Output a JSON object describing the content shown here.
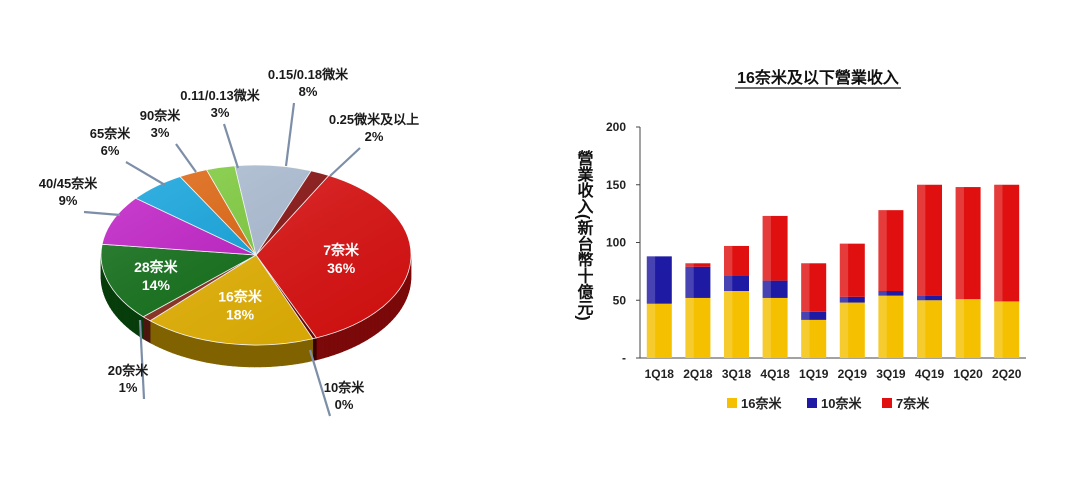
{
  "colors": {
    "n16": "#f5c000",
    "n10": "#1f1aa3",
    "n7": "#e01010"
  },
  "chart_data": [
    {
      "type": "pie",
      "title": "",
      "slices": [
        {
          "name": "7奈米",
          "value": 36,
          "label_pct": "36%",
          "color": "#e01010"
        },
        {
          "name": "10奈米",
          "value": 0,
          "label_pct": "0%",
          "color": "#6a0000"
        },
        {
          "name": "16奈米",
          "value": 18,
          "label_pct": "18%",
          "color": "#e8b400"
        },
        {
          "name": "20奈米",
          "value": 1,
          "label_pct": "1%",
          "color": "#8a2a1a"
        },
        {
          "name": "28奈米",
          "value": 14,
          "label_pct": "14%",
          "color": "#0d6e14"
        },
        {
          "name": "40/45奈米",
          "value": 9,
          "label_pct": "9%",
          "color": "#c21cc8"
        },
        {
          "name": "65奈米",
          "value": 6,
          "label_pct": "6%",
          "color": "#0fa5e0"
        },
        {
          "name": "90奈米",
          "value": 3,
          "label_pct": "3%",
          "color": "#e2650c"
        },
        {
          "name": "0.11/0.13微米",
          "value": 3,
          "label_pct": "3%",
          "color": "#7fcf3c"
        },
        {
          "name": "0.15/0.18微米",
          "value": 8,
          "label_pct": "8%",
          "color": "#aebfd6"
        },
        {
          "name": "0.25微米及以上",
          "value": 2,
          "label_pct": "2%",
          "color": "#8a1010"
        }
      ]
    },
    {
      "type": "bar",
      "stacked": true,
      "title": "16奈米及以下營業收入",
      "ylabel": "營業收入(新台幣十億元)",
      "ylim": [
        0,
        200
      ],
      "yticks": [
        "-",
        "50",
        "100",
        "150",
        "200"
      ],
      "categories": [
        "1Q18",
        "2Q18",
        "3Q18",
        "4Q18",
        "1Q19",
        "2Q19",
        "3Q19",
        "4Q19",
        "1Q20",
        "2Q20"
      ],
      "series": [
        {
          "name": "16奈米",
          "color": "#f5c000",
          "values": [
            47,
            52,
            58,
            52,
            33,
            48,
            54,
            50,
            51,
            49
          ]
        },
        {
          "name": "10奈米",
          "color": "#1f1aa3",
          "values": [
            41,
            27,
            13,
            15,
            7,
            5,
            4,
            4,
            0,
            0
          ]
        },
        {
          "name": "7奈米",
          "color": "#e01010",
          "values": [
            0,
            3,
            26,
            56,
            42,
            46,
            70,
            96,
            97,
            101
          ]
        }
      ],
      "legend": "bottom"
    }
  ]
}
